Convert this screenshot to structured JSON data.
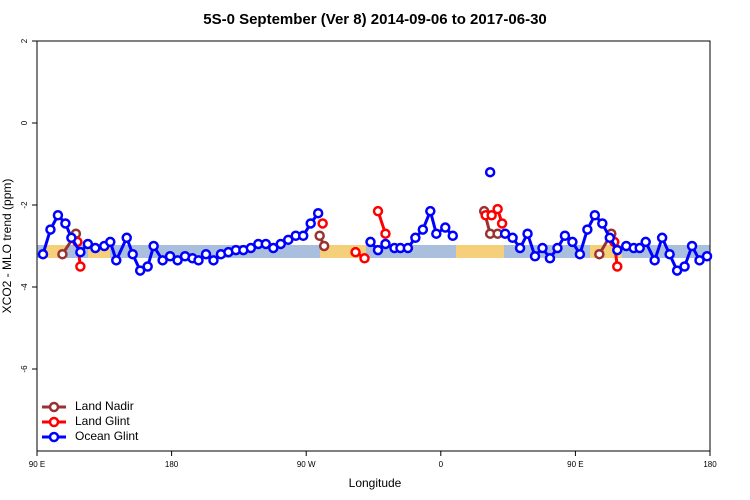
{
  "chart_data": {
    "type": "line",
    "title": "5S-0 September (Ver 8)   2014-09-06 to 2017-06-30",
    "x_label": "Longitude",
    "y_label": "XCO2 - MLO trend (ppm)",
    "xlim": [
      90,
      540
    ],
    "xticks": [
      {
        "value": 90,
        "label": "90 E"
      },
      180,
      {
        "value": 270,
        "label": "90 W"
      },
      {
        "value": 360,
        "label": "0"
      },
      {
        "value": 450,
        "label": "90 E"
      },
      {
        "value": 540,
        "label": "180"
      }
    ],
    "ylim": [
      -8,
      2
    ],
    "yticks": [
      2,
      0,
      -2,
      -4,
      -6
    ],
    "legend": "bottomleft",
    "series": [
      {
        "name": "Land Nadir",
        "color": "#993333",
        "x": [
          107,
          116,
          null,
          279,
          282,
          null,
          389,
          393,
          398,
          null,
          466,
          474
        ],
        "values": [
          -3.2,
          -2.7,
          null,
          -2.75,
          -3.0,
          null,
          -2.15,
          -2.7,
          -2.7,
          null,
          -3.2,
          -2.7
        ]
      },
      {
        "name": "Land Glint",
        "color": "#ff0000",
        "x": [
          117,
          119,
          null,
          281,
          null,
          303,
          309,
          null,
          318,
          323,
          null,
          390,
          394,
          398,
          401,
          null,
          476,
          478
        ],
        "values": [
          -2.9,
          -3.5,
          null,
          -2.45,
          null,
          -3.15,
          -3.3,
          null,
          -2.15,
          -2.7,
          null,
          -2.25,
          -2.25,
          -2.1,
          -2.45,
          null,
          -2.9,
          -3.5
        ]
      },
      {
        "name": "Ocean Glint",
        "color": "#0000ff",
        "x": [
          94,
          99,
          104,
          109,
          113,
          119,
          124,
          129,
          135,
          139,
          143,
          150,
          154,
          159,
          164,
          168,
          174,
          179,
          184,
          189,
          194,
          198,
          203,
          208,
          213,
          218,
          223,
          228,
          233,
          238,
          243,
          248,
          253,
          258,
          263,
          268,
          273,
          278,
          null,
          313,
          318,
          323,
          329,
          333,
          338,
          343,
          348,
          353,
          357,
          363,
          368,
          null,
          393,
          null,
          403,
          408,
          413,
          418,
          423,
          428,
          433,
          438,
          443,
          448,
          453,
          458,
          463,
          468,
          473,
          478,
          484,
          489,
          493,
          497,
          503,
          508,
          513,
          518,
          523,
          528,
          533,
          538
        ],
        "values": [
          -3.2,
          -2.6,
          -2.25,
          -2.45,
          -2.8,
          -3.15,
          -2.95,
          -3.05,
          -3.0,
          -2.9,
          -3.35,
          -2.8,
          -3.2,
          -3.6,
          -3.5,
          -3.0,
          -3.35,
          -3.25,
          -3.35,
          -3.25,
          -3.3,
          -3.35,
          -3.2,
          -3.35,
          -3.2,
          -3.15,
          -3.1,
          -3.1,
          -3.05,
          -2.95,
          -2.95,
          -3.05,
          -2.95,
          -2.85,
          -2.75,
          -2.75,
          -2.45,
          -2.2,
          null,
          -2.9,
          -3.1,
          -2.95,
          -3.05,
          -3.05,
          -3.05,
          -2.8,
          -2.6,
          -2.15,
          -2.7,
          -2.55,
          -2.75,
          null,
          -1.2,
          null,
          -2.7,
          -2.8,
          -3.05,
          -2.7,
          -3.25,
          -3.05,
          -3.3,
          -3.05,
          -2.75,
          -2.9,
          -3.2,
          -2.6,
          -2.25,
          -2.45,
          -2.8,
          -3.1,
          -3.0,
          -3.05,
          -3.05,
          -2.9,
          -3.35,
          -2.8,
          -3.2,
          -3.6,
          -3.5,
          -3.0,
          -3.35,
          -3.25
        ]
      }
    ]
  }
}
